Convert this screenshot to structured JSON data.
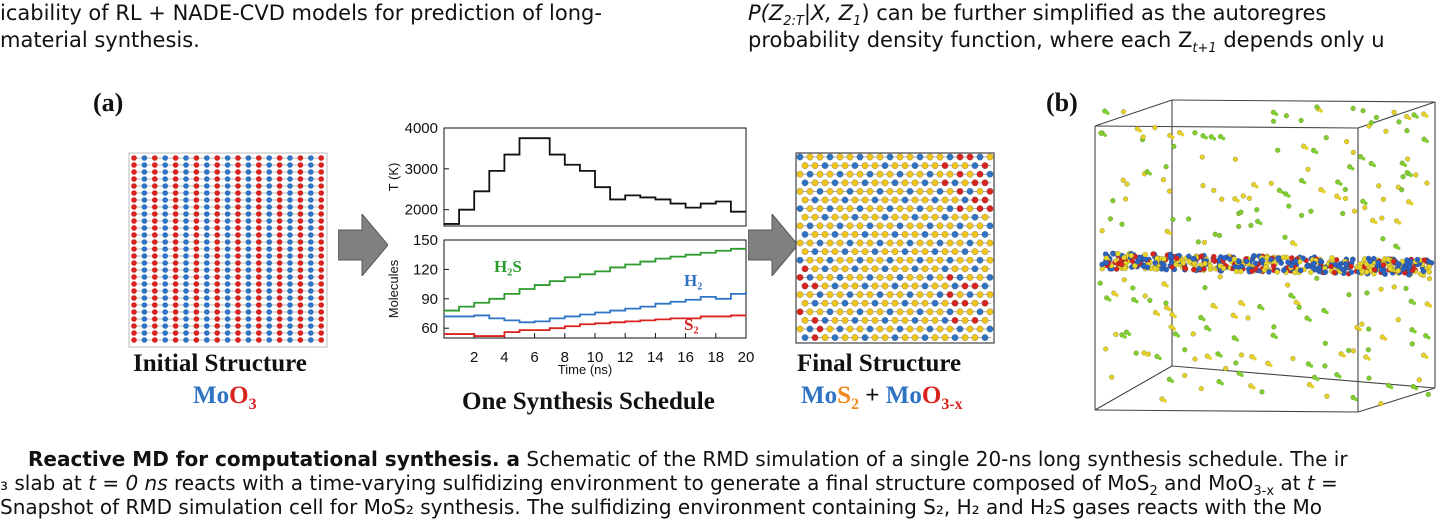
{
  "text": {
    "top_left_line1": "icability of RL + NADE-CVD models for prediction of long-",
    "top_left_line2": "material synthesis.",
    "top_right_line1_pre": "P(Z",
    "top_right_line1_sub": "2:T",
    "top_right_line1_mid": "|X, Z",
    "top_right_line1_sub2": "1",
    "top_right_line1_post": ")   can   be   further   simplified   as   the   autoregres",
    "top_right_line2_pre": "probability density function, where each Z",
    "top_right_line2_sub": "t+1",
    "top_right_line2_post": " depends only u"
  },
  "figure": {
    "panel_a": "(a)",
    "panel_b": "(b)",
    "initial_title": "Initial Structure",
    "initial_formula_mo": "Mo",
    "initial_formula_o": "O",
    "initial_formula_sub": "3",
    "schedule_title": "One Synthesis Schedule",
    "final_title": "Final Structure",
    "final_mo1": "Mo",
    "final_s": "S",
    "final_sub1": "2",
    "final_plus": " + ",
    "final_mo2": "Mo",
    "final_o": "O",
    "final_sub2": "3-x",
    "colors": {
      "mo": "#2f74c4",
      "o": "#d9231f",
      "s": "#f0c419",
      "h2s": "#2e9b2e",
      "h2": "#2f74c4",
      "s2": "#d9231f"
    }
  },
  "chart_data": [
    {
      "type": "line",
      "ylabel": "T (K)",
      "ylim": [
        1600,
        4000
      ],
      "yticks": [
        2000,
        3000,
        4000
      ],
      "step": true,
      "x": [
        0,
        1,
        2,
        3,
        4,
        5,
        6,
        7,
        8,
        9,
        10,
        11,
        12,
        13,
        14,
        15,
        16,
        17,
        18,
        19,
        20
      ],
      "series": [
        {
          "values": [
            1650,
            2000,
            2450,
            2950,
            3350,
            3750,
            3750,
            3350,
            3100,
            2950,
            2550,
            2250,
            2350,
            2300,
            2250,
            2150,
            2050,
            2150,
            2200,
            1950,
            1950
          ]
        }
      ]
    },
    {
      "type": "line",
      "xlabel": "Time (ns)",
      "ylabel": "Molecules",
      "xlim": [
        0,
        20
      ],
      "ylim": [
        50,
        150
      ],
      "xticks": [
        2,
        4,
        6,
        8,
        10,
        12,
        14,
        16,
        18,
        20
      ],
      "yticks": [
        60,
        90,
        120,
        150
      ],
      "step": true,
      "series": [
        {
          "name": "H₂S",
          "color": "#2e9b2e",
          "x": [
            0,
            1,
            2,
            3,
            4,
            5,
            6,
            7,
            8,
            9,
            10,
            11,
            12,
            13,
            14,
            15,
            16,
            17,
            18,
            19,
            20
          ],
          "values": [
            78,
            82,
            86,
            90,
            95,
            100,
            104,
            108,
            112,
            115,
            118,
            122,
            125,
            128,
            131,
            133,
            135,
            137,
            139,
            141,
            141
          ]
        },
        {
          "name": "H₂",
          "color": "#2f74c4",
          "x": [
            0,
            1,
            2,
            3,
            4,
            5,
            6,
            7,
            8,
            9,
            10,
            11,
            12,
            13,
            14,
            15,
            16,
            17,
            18,
            19,
            20
          ],
          "values": [
            72,
            72,
            73,
            70,
            68,
            66,
            67,
            70,
            72,
            74,
            76,
            78,
            80,
            82,
            85,
            87,
            89,
            92,
            90,
            95,
            97
          ]
        },
        {
          "name": "S₂",
          "color": "#d9231f",
          "x": [
            0,
            1,
            2,
            3,
            4,
            5,
            6,
            7,
            8,
            9,
            10,
            11,
            12,
            13,
            14,
            15,
            16,
            17,
            18,
            19,
            20
          ],
          "values": [
            54,
            54,
            52,
            52,
            56,
            58,
            58,
            60,
            62,
            64,
            65,
            66,
            67,
            68,
            69,
            70,
            70,
            72,
            72,
            73,
            73
          ]
        }
      ]
    }
  ],
  "caption": {
    "line1_bold": "Reactive MD for computational synthesis.",
    "line1_boldA": " a",
    "line1_rest": " Schematic of the RMD simulation of a single 20-ns long synthesis schedule. The ir",
    "line2_pre": "₃ slab at ",
    "line2_italic": "t",
    "line2_eq": " = ",
    "line2_italic2": "0 ns",
    "line2_mid": " reacts with a time-varying sulfidizing environment to generate a final structure composed of MoS",
    "line2_sub": "2",
    "line2_and": " and MoO",
    "line2_sub2": "3-x",
    "line2_at": " at ",
    "line2_t": "t",
    "line2_end": " =",
    "line3": " Snapshot of RMD simulation cell for MoS₂ synthesis. The sulfidizing environment containing S₂, H₂ and H₂S gases reacts with the Mo"
  }
}
